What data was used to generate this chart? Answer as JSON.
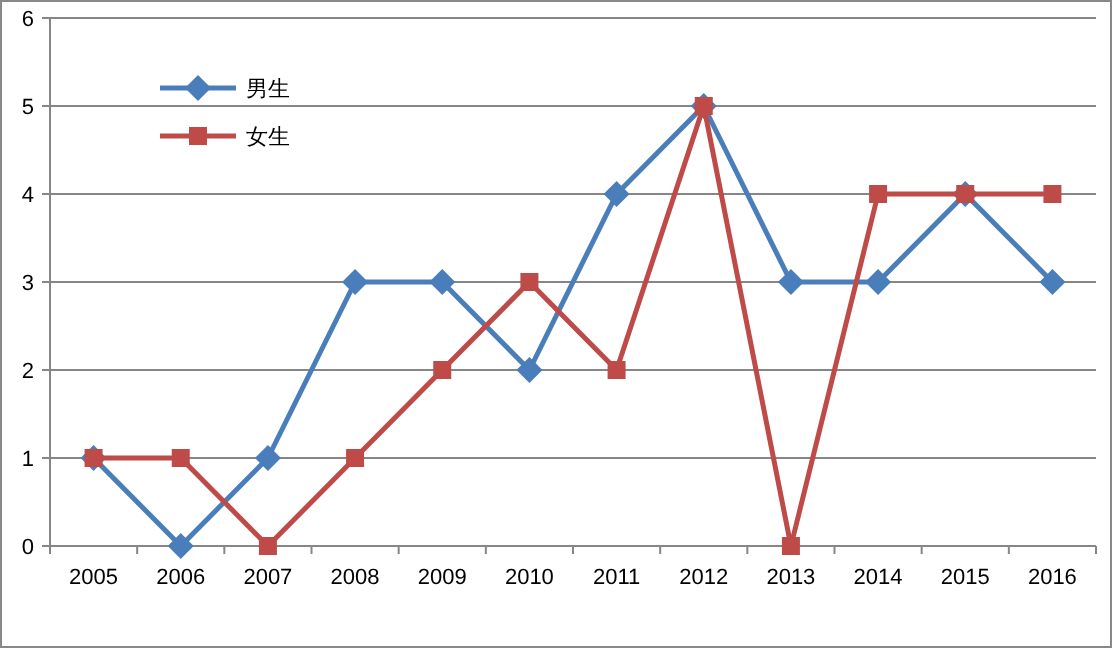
{
  "chart_data": {
    "type": "line",
    "categories": [
      "2005",
      "2006",
      "2007",
      "2008",
      "2009",
      "2010",
      "2011",
      "2012",
      "2013",
      "2014",
      "2015",
      "2016"
    ],
    "series": [
      {
        "name": "男生",
        "color": "#4a7ebb",
        "marker": "diamond",
        "values": [
          1,
          0,
          1,
          3,
          3,
          2,
          4,
          5,
          3,
          3,
          4,
          3
        ]
      },
      {
        "name": "女生",
        "color": "#be4b48",
        "marker": "square",
        "values": [
          1,
          1,
          0,
          1,
          2,
          3,
          2,
          5,
          0,
          4,
          4,
          4
        ]
      }
    ],
    "ylim": [
      0,
      6
    ],
    "yticks": [
      0,
      1,
      2,
      3,
      4,
      5,
      6
    ],
    "grid": "y",
    "legend": "top left",
    "line_style": "solid"
  }
}
